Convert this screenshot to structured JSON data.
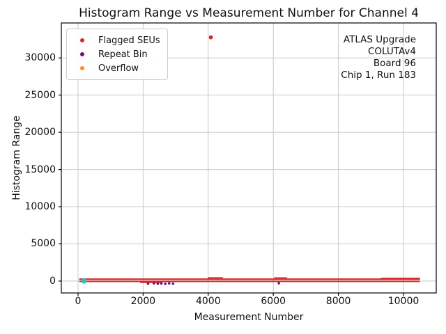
{
  "figure": {
    "background": "#ffffff",
    "frame_color": "#000000",
    "text_color": "#111111"
  },
  "chart_data": {
    "type": "scatter",
    "title": "Histogram Range vs Measurement Number for Channel 4",
    "xlabel": "Measurement Number",
    "ylabel": "Histogram Range",
    "xlim": [
      -514,
      11006
    ],
    "ylim": [
      -1600,
      34700
    ],
    "xticks": [
      0,
      2000,
      4000,
      6000,
      8000,
      10000
    ],
    "yticks": [
      0,
      5000,
      10000,
      15000,
      20000,
      25000,
      30000
    ],
    "grid": true,
    "grid_color": "#c8c8c8",
    "legend": {
      "position": "upper-left",
      "entries": [
        {
          "label": "Flagged SEUs",
          "color": "#d62728"
        },
        {
          "label": "Repeat Bin",
          "color": "#750b80"
        },
        {
          "label": "Overflow",
          "color": "#ff8c1a"
        }
      ]
    },
    "annotation": {
      "position": "upper-right",
      "align": "right",
      "lines": [
        "ATLAS Upgrade",
        "COLUTAv4",
        "Board 96",
        "Chip 1, Run 183"
      ]
    },
    "series": [
      {
        "name": "Flagged SEUs",
        "color": "#d62728",
        "marker": "circle",
        "band_segments": [
          {
            "x0": 30,
            "x1": 10510,
            "y0": 150,
            "y1": 350
          },
          {
            "x0": 30,
            "x1": 10510,
            "y0": -140,
            "y1": 50
          },
          {
            "x0": 1900,
            "x1": 2600,
            "y0": -230,
            "y1": -120
          },
          {
            "x0": 3980,
            "x1": 4460,
            "y0": 350,
            "y1": 520
          },
          {
            "x0": 6020,
            "x1": 6430,
            "y0": 350,
            "y1": 500
          },
          {
            "x0": 9300,
            "x1": 10510,
            "y0": 350,
            "y1": 450
          }
        ],
        "outlier_points": [
          [
            4080,
            32767
          ]
        ]
      },
      {
        "name": "Repeat Bin",
        "color": "#750b80",
        "marker": "circle",
        "points": [
          [
            2150,
            -350
          ],
          [
            2330,
            -300
          ],
          [
            2450,
            -350
          ],
          [
            2560,
            -330
          ],
          [
            2680,
            -360
          ],
          [
            2800,
            -310
          ],
          [
            2920,
            -350
          ],
          [
            6170,
            -290
          ]
        ]
      },
      {
        "name": "Overflow",
        "color": "#ff8c1a",
        "marker": "circle",
        "points": []
      },
      {
        "name": "unlabeled-cyan-markers",
        "color": "#2bbfbf",
        "marker": "circle",
        "points": [
          [
            140,
            80
          ],
          [
            150,
            -120
          ],
          [
            165,
            240
          ],
          [
            180,
            10
          ],
          [
            195,
            -180
          ],
          [
            210,
            150
          ],
          [
            225,
            -40
          ]
        ]
      }
    ]
  }
}
